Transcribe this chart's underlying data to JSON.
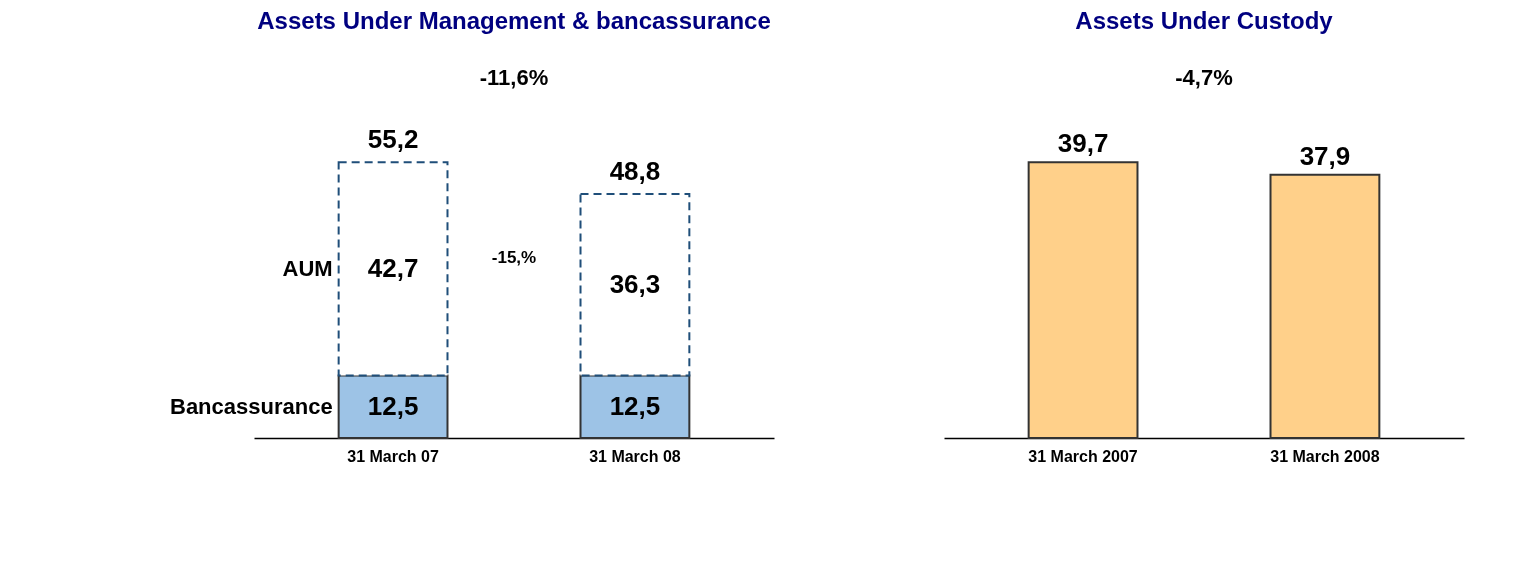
{
  "chart_data": [
    {
      "type": "bar",
      "title": "Assets Under Management & bancassurance",
      "categories": [
        "31 March 07",
        "31 March 08"
      ],
      "stacked": true,
      "series": [
        {
          "name": "Bancassurance",
          "color": "#9dc3e6",
          "line_style": "solid",
          "values": [
            12.5,
            12.5
          ],
          "value_labels": [
            "12,5",
            "12,5"
          ]
        },
        {
          "name": "AUM",
          "color": "#ffffff",
          "line_style": "dashed",
          "values": [
            42.7,
            36.3
          ],
          "value_labels": [
            "42,7",
            "36,3"
          ]
        }
      ],
      "totals": [
        "55,2",
        "48,8"
      ],
      "annotations": [
        "-11,6%",
        "-15,%"
      ]
    },
    {
      "type": "bar",
      "title": "Assets Under Custody",
      "categories": [
        "31 March 2007",
        "31 March 2008"
      ],
      "series": [
        {
          "color": "#ffd08a",
          "values": [
            39.7,
            37.9
          ],
          "value_labels": [
            "39,7",
            "37,9"
          ]
        }
      ],
      "annotations": [
        "-4,7%"
      ]
    }
  ]
}
